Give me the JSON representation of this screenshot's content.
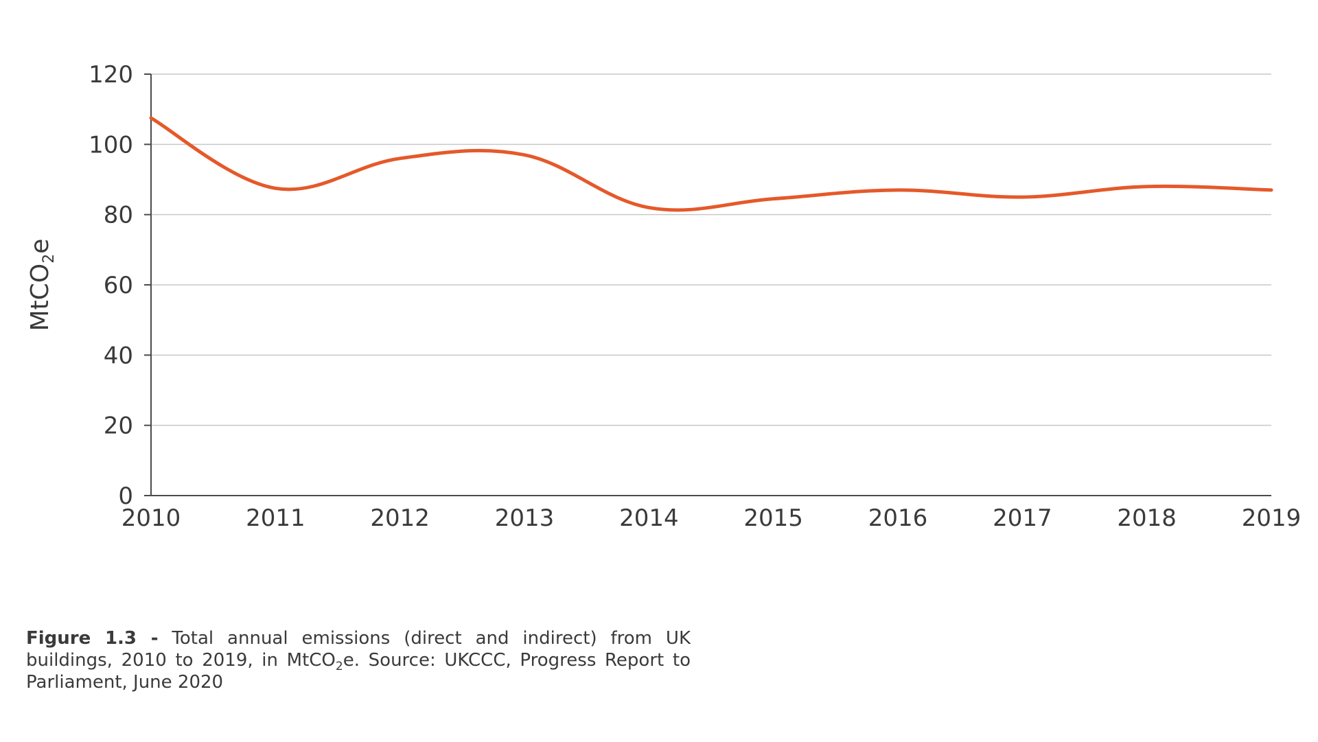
{
  "chart_data": {
    "type": "line",
    "title": "",
    "xlabel": "",
    "ylabel": {
      "prefix": "MtCO",
      "subscript": "2",
      "suffix": "e"
    },
    "ylim": [
      0,
      120
    ],
    "yticks": [
      "0",
      "20",
      "40",
      "60",
      "80",
      "100",
      "120"
    ],
    "x": [
      "2010",
      "2011",
      "2012",
      "2013",
      "2014",
      "2015",
      "2016",
      "2017",
      "2018",
      "2019"
    ],
    "grid": true,
    "series": [
      {
        "name": "Total annual emissions",
        "color": "#e5592a",
        "values": [
          107.5,
          87.5,
          96,
          97,
          82,
          84.5,
          87,
          85,
          88,
          87
        ]
      }
    ]
  },
  "caption": {
    "label": "Figure 1.3 -",
    "text_before": "Total annual emissions (direct and indirect) from UK buildings, 2010 to 2019, in MtCO",
    "subscript": "2",
    "text_after": "e. Source: UKCCC, Progress Report to Parliament, June 2020"
  }
}
